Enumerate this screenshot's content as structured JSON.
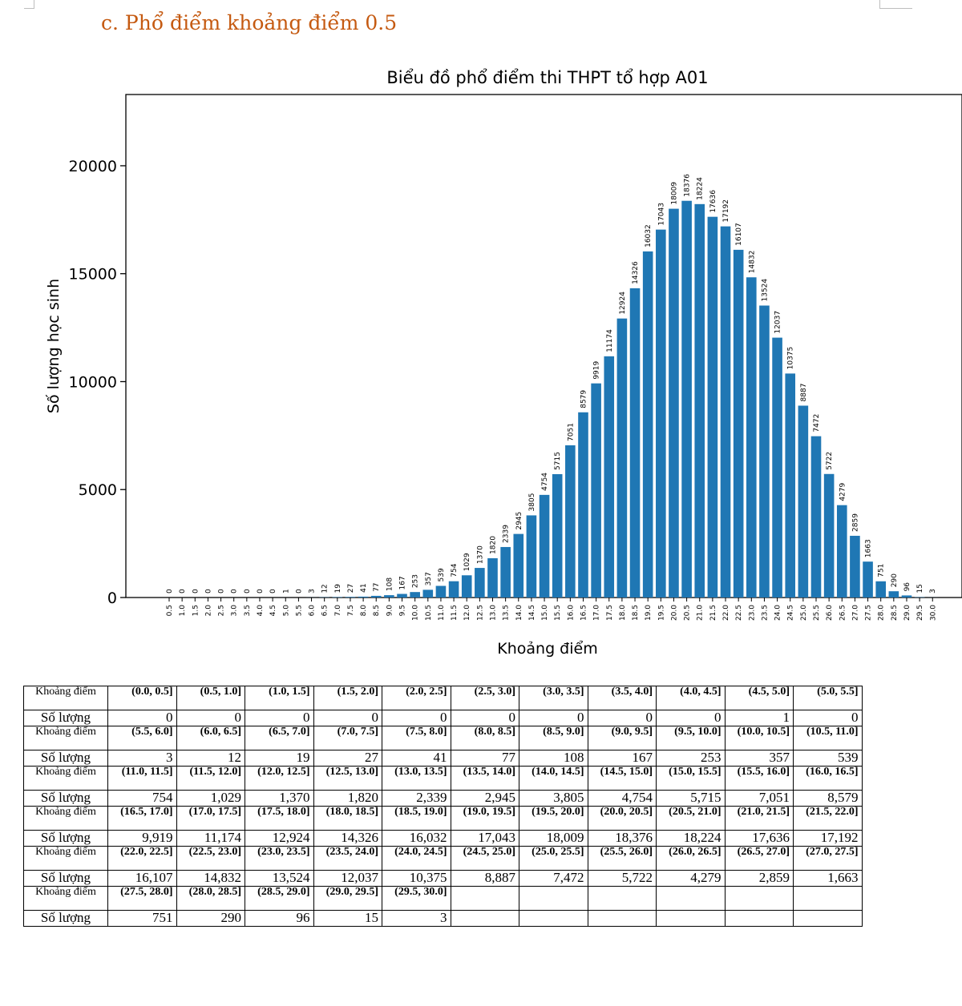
{
  "heading": "c.   Phổ điểm khoảng điểm 0.5",
  "chart_data": {
    "type": "bar",
    "title": "Biểu đồ phổ điểm thi THPT tổ hợp A01",
    "xlabel": "Khoảng điểm",
    "ylabel": "Số lượng học sinh",
    "ylim": [
      0,
      23300
    ],
    "yticks": [
      0,
      5000,
      10000,
      15000,
      20000
    ],
    "categories": [
      "0.5",
      "1.0",
      "1.5",
      "2.0",
      "2.5",
      "3.0",
      "3.5",
      "4.0",
      "4.5",
      "5.0",
      "5.5",
      "6.0",
      "6.5",
      "7.0",
      "7.5",
      "8.0",
      "8.5",
      "9.0",
      "9.5",
      "10.0",
      "10.5",
      "11.0",
      "11.5",
      "12.0",
      "12.5",
      "13.0",
      "13.5",
      "14.0",
      "14.5",
      "15.0",
      "15.5",
      "16.0",
      "16.5",
      "17.0",
      "17.5",
      "18.0",
      "18.5",
      "19.0",
      "19.5",
      "20.0",
      "20.5",
      "21.0",
      "21.5",
      "22.0",
      "22.5",
      "23.0",
      "23.5",
      "24.0",
      "24.5",
      "25.0",
      "25.5",
      "26.0",
      "26.5",
      "27.0",
      "27.5",
      "28.0",
      "28.5",
      "29.0",
      "29.5",
      "30.0"
    ],
    "values": [
      0,
      0,
      0,
      0,
      0,
      0,
      0,
      0,
      0,
      1,
      0,
      3,
      12,
      19,
      27,
      41,
      77,
      108,
      167,
      253,
      357,
      539,
      754,
      1029,
      1370,
      1820,
      2339,
      2945,
      3805,
      4754,
      5715,
      7051,
      8579,
      9919,
      11174,
      12924,
      14326,
      16032,
      17043,
      18009,
      18376,
      18224,
      17636,
      17192,
      16107,
      14832,
      13524,
      12037,
      10375,
      8887,
      7472,
      5722,
      4279,
      2859,
      1663,
      751,
      290,
      96,
      15,
      3
    ],
    "bar_color": "#1f77b4",
    "grid": false
  },
  "table": {
    "label_range": "Khoảng điểm",
    "label_count": "Số lượng",
    "blocks": [
      {
        "ranges": [
          "(0.0, 0.5]",
          "(0.5, 1.0]",
          "(1.0, 1.5]",
          "(1.5, 2.0]",
          "(2.0, 2.5]",
          "(2.5, 3.0]",
          "(3.0, 3.5]",
          "(3.5, 4.0]",
          "(4.0, 4.5]",
          "(4.5, 5.0]",
          "(5.0, 5.5]"
        ],
        "counts": [
          "0",
          "0",
          "0",
          "0",
          "0",
          "0",
          "0",
          "0",
          "0",
          "1",
          "0"
        ]
      },
      {
        "ranges": [
          "(5.5, 6.0]",
          "(6.0, 6.5]",
          "(6.5, 7.0]",
          "(7.0, 7.5]",
          "(7.5, 8.0]",
          "(8.0, 8.5]",
          "(8.5, 9.0]",
          "(9.0, 9.5]",
          "(9.5, 10.0]",
          "(10.0, 10.5]",
          "(10.5, 11.0]"
        ],
        "counts": [
          "3",
          "12",
          "19",
          "27",
          "41",
          "77",
          "108",
          "167",
          "253",
          "357",
          "539"
        ]
      },
      {
        "ranges": [
          "(11.0, 11.5]",
          "(11.5, 12.0]",
          "(12.0, 12.5]",
          "(12.5, 13.0]",
          "(13.0, 13.5]",
          "(13.5, 14.0]",
          "(14.0, 14.5]",
          "(14.5, 15.0]",
          "(15.0, 15.5]",
          "(15.5, 16.0]",
          "(16.0, 16.5]"
        ],
        "counts": [
          "754",
          "1,029",
          "1,370",
          "1,820",
          "2,339",
          "2,945",
          "3,805",
          "4,754",
          "5,715",
          "7,051",
          "8,579"
        ]
      },
      {
        "ranges": [
          "(16.5, 17.0]",
          "(17.0, 17.5]",
          "(17.5, 18.0]",
          "(18.0, 18.5]",
          "(18.5, 19.0]",
          "(19.0, 19.5]",
          "(19.5, 20.0]",
          "(20.0, 20.5]",
          "(20.5, 21.0]",
          "(21.0, 21.5]",
          "(21.5, 22.0]"
        ],
        "counts": [
          "9,919",
          "11,174",
          "12,924",
          "14,326",
          "16,032",
          "17,043",
          "18,009",
          "18,376",
          "18,224",
          "17,636",
          "17,192"
        ]
      },
      {
        "ranges": [
          "(22.0, 22.5]",
          "(22.5, 23.0]",
          "(23.0, 23.5]",
          "(23.5, 24.0]",
          "(24.0, 24.5]",
          "(24.5, 25.0]",
          "(25.0, 25.5]",
          "(25.5, 26.0]",
          "(26.0, 26.5]",
          "(26.5, 27.0]",
          "(27.0, 27.5]"
        ],
        "counts": [
          "16,107",
          "14,832",
          "13,524",
          "12,037",
          "10,375",
          "8,887",
          "7,472",
          "5,722",
          "4,279",
          "2,859",
          "1,663"
        ]
      },
      {
        "ranges": [
          "(27.5, 28.0]",
          "(28.0, 28.5]",
          "(28.5, 29.0]",
          "(29.0, 29.5]",
          "(29.5, 30.0]",
          "",
          "",
          "",
          "",
          "",
          ""
        ],
        "counts": [
          "751",
          "290",
          "96",
          "15",
          "3",
          "",
          "",
          "",
          "",
          "",
          ""
        ]
      }
    ]
  }
}
